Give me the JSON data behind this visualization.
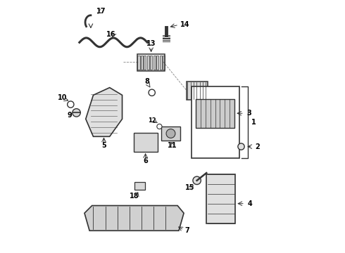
{
  "bg_color": "#ffffff",
  "line_color": "#333333",
  "text_color": "#000000",
  "figsize": [
    4.9,
    3.6
  ],
  "dpi": 100
}
